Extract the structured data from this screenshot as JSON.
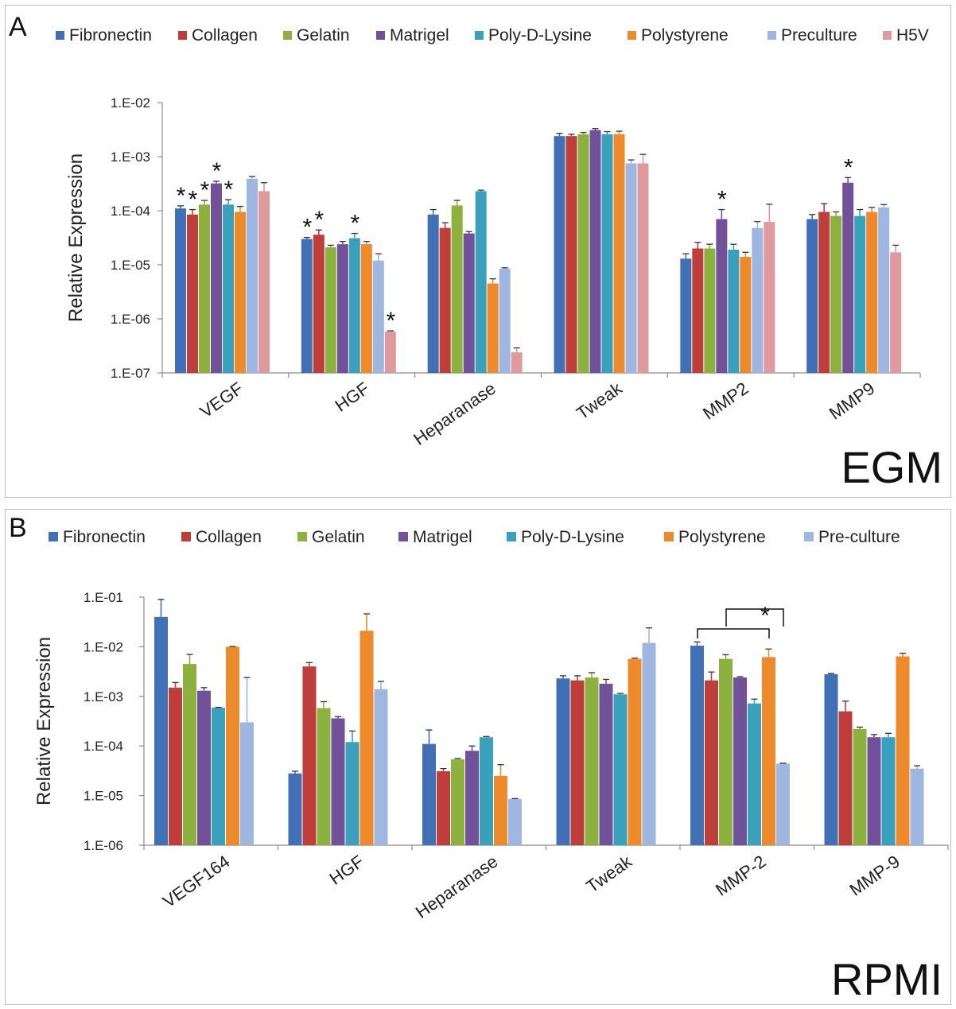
{
  "colors": {
    "Fibronectin": "#4170b4",
    "Collagen": "#bd3e3a",
    "Gelatin": "#8cb13f",
    "Matrigel": "#71519a",
    "Poly-D-Lysine": "#3ba0bb",
    "Polystyrene": "#ec8a2c",
    "Preculture": "#9fb6e0",
    "Pre-culture": "#9fb6e0",
    "H5V": "#de9a9c"
  },
  "chart_data": [
    {
      "panel_label": "A",
      "medium_label": "EGM",
      "type": "bar",
      "scale": "log",
      "ylabel": "Relative Expression",
      "ylim": [
        1e-07,
        0.01
      ],
      "yticks": [
        "1.E-02",
        "1.E-03",
        "1.E-04",
        "1.E-05",
        "1.E-06",
        "1.E-07"
      ],
      "legend_position": "top",
      "categories": [
        "VEGF",
        "HGF",
        "Heparanase",
        "Tweak",
        "MMP2",
        "MMP9"
      ],
      "series": [
        {
          "name": "Fibronectin",
          "values": [
            0.00011,
            3e-05,
            8.5e-05,
            0.0024,
            1.3e-05,
            7e-05
          ],
          "errors": [
            1.3e-05,
            2e-06,
            2e-05,
            0.0003,
            3e-06,
            1.5e-05
          ]
        },
        {
          "name": "Collagen",
          "values": [
            8.5e-05,
            3.6e-05,
            4.8e-05,
            0.0024,
            2e-05,
            9.5e-05
          ],
          "errors": [
            2e-05,
            8e-06,
            1.2e-05,
            0.0002,
            6e-06,
            4e-05
          ]
        },
        {
          "name": "Gelatin",
          "values": [
            0.00013,
            2.1e-05,
            0.000125,
            0.0026,
            2e-05,
            8e-05
          ],
          "errors": [
            2.5e-05,
            2e-06,
            3e-05,
            0.0002,
            4e-06,
            1.5e-05
          ]
        },
        {
          "name": "Matrigel",
          "values": [
            0.00032,
            2.4e-05,
            3.8e-05,
            0.0031,
            7e-05,
            0.00033
          ],
          "errors": [
            3e-05,
            3e-06,
            3e-06,
            0.0002,
            3.5e-05,
            8e-05
          ]
        },
        {
          "name": "Poly-D-Lysine",
          "values": [
            0.00013,
            3.1e-05,
            0.00023,
            0.0026,
            1.9e-05,
            8e-05
          ],
          "errors": [
            3e-05,
            7e-06,
            1e-05,
            0.0003,
            5e-06,
            2.5e-05
          ]
        },
        {
          "name": "Polystyrene",
          "values": [
            9.5e-05,
            2.4e-05,
            4.5e-06,
            0.0026,
            1.4e-05,
            9.5e-05
          ],
          "errors": [
            2.5e-05,
            3e-06,
            1e-06,
            0.00035,
            3e-06,
            2e-05
          ]
        },
        {
          "name": "Preculture",
          "values": [
            0.00039,
            1.2e-05,
            8.5e-06,
            0.00075,
            4.8e-05,
            0.000115
          ],
          "errors": [
            4e-05,
            4e-06,
            3e-07,
            0.00012,
            1.5e-05,
            1.5e-05
          ]
        },
        {
          "name": "H5V",
          "values": [
            0.00023,
            5.8e-07,
            2.4e-07,
            0.00075,
            6.2e-05,
            1.7e-05
          ],
          "errors": [
            0.0001,
            2e-08,
            5e-08,
            0.00035,
            7e-05,
            6e-06
          ]
        }
      ],
      "annotations": [
        {
          "text": "*",
          "category": "VEGF",
          "series": "Fibronectin"
        },
        {
          "text": "*",
          "category": "VEGF",
          "series": "Collagen"
        },
        {
          "text": "*",
          "category": "VEGF",
          "series": "Gelatin"
        },
        {
          "text": "*",
          "category": "VEGF",
          "series": "Matrigel"
        },
        {
          "text": "*",
          "category": "VEGF",
          "series": "Poly-D-Lysine"
        },
        {
          "text": "*",
          "category": "HGF",
          "series": "Fibronectin"
        },
        {
          "text": "*",
          "category": "HGF",
          "series": "Collagen"
        },
        {
          "text": "*",
          "category": "HGF",
          "series": "Poly-D-Lysine"
        },
        {
          "text": "*",
          "category": "HGF",
          "series": "H5V"
        },
        {
          "text": "*",
          "category": "MMP2",
          "series": "Matrigel"
        },
        {
          "text": "*",
          "category": "MMP9",
          "series": "Matrigel"
        }
      ]
    },
    {
      "panel_label": "B",
      "medium_label": "RPMI",
      "type": "bar",
      "scale": "log",
      "ylabel": "Relative Expression",
      "ylim": [
        1e-06,
        0.1
      ],
      "yticks": [
        "1.E-01",
        "1.E-02",
        "1.E-03",
        "1.E-04",
        "1.E-05",
        "1.E-06"
      ],
      "legend_position": "top",
      "categories": [
        "VEGF164",
        "HGF",
        "Heparanase",
        "Tweak",
        "MMP-2",
        "MMP-9"
      ],
      "series": [
        {
          "name": "Fibronectin",
          "values": [
            0.04,
            2.8e-05,
            0.00011,
            0.0023,
            0.0105,
            0.0028
          ],
          "errors": [
            0.05,
            3e-06,
            0.0001,
            0.0003,
            0.002,
            0.0001
          ]
        },
        {
          "name": "Collagen",
          "values": [
            0.0015,
            0.004,
            3.1e-05,
            0.0021,
            0.0021,
            0.0005
          ],
          "errors": [
            0.0004,
            0.0008,
            4e-06,
            0.0005,
            0.001,
            0.0003
          ]
        },
        {
          "name": "Gelatin",
          "values": [
            0.0045,
            0.00058,
            5.4e-05,
            0.0024,
            0.0057,
            0.00022
          ],
          "errors": [
            0.0025,
            0.0002,
            2e-06,
            0.0006,
            0.0012,
            2e-05
          ]
        },
        {
          "name": "Matrigel",
          "values": [
            0.0013,
            0.00036,
            8e-05,
            0.0018,
            0.0024,
            0.00015
          ],
          "errors": [
            0.0002,
            3e-05,
            2e-05,
            0.0004,
            0.0001,
            2e-05
          ]
        },
        {
          "name": "Poly-D-Lysine",
          "values": [
            0.00059,
            0.00012,
            0.00015,
            0.0011,
            0.00072,
            0.00015
          ],
          "errors": [
            1e-05,
            8e-05,
            5e-06,
            5e-05,
            0.00016,
            3e-05
          ]
        },
        {
          "name": "Polystyrene",
          "values": [
            0.01,
            0.021,
            2.5e-05,
            0.0057,
            0.0062,
            0.0064
          ],
          "errors": [
            0.0001,
            0.025,
            1.7e-05,
            0.0002,
            0.0028,
            0.001
          ]
        },
        {
          "name": "Pre-culture",
          "values": [
            0.0003,
            0.0014,
            8.5e-06,
            0.012,
            4.4e-05,
            3.5e-05
          ],
          "errors": [
            0.0021,
            0.0006,
            2e-07,
            0.012,
            1e-06,
            5e-06
          ]
        }
      ],
      "annotations": [
        {
          "text": "*",
          "type": "bracket",
          "from": [
            "MMP-2",
            "Fibronectin"
          ],
          "to": [
            "MMP-2",
            "Polystyrene"
          ]
        },
        {
          "text": "",
          "type": "bracket",
          "from": [
            "MMP-2",
            "Gelatin"
          ],
          "to": [
            "MMP-2",
            "Pre-culture"
          ]
        }
      ]
    }
  ]
}
